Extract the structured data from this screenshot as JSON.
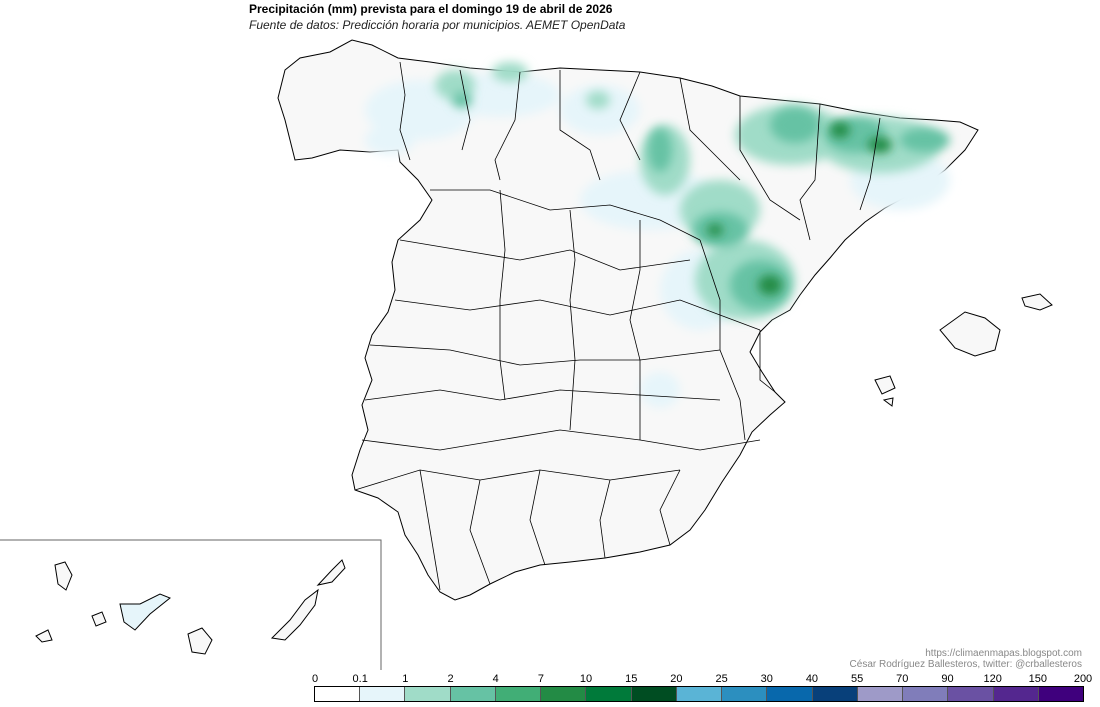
{
  "title": "Precipitación (mm) prevista para el domingo 19 de abril de 2026",
  "subtitle": "Fuente de datos: Predicción horaria por municipios. AEMET OpenData",
  "credits": {
    "url": "https://climaenmapas.blogspot.com",
    "author": "César Rodríguez Ballesteros, twitter: @crballesteros"
  },
  "legend": {
    "labels": [
      "0",
      "0.1",
      "1",
      "2",
      "4",
      "7",
      "10",
      "15",
      "20",
      "25",
      "30",
      "40",
      "55",
      "70",
      "90",
      "120",
      "150",
      "200"
    ],
    "colors": [
      "#ffffff",
      "#e6f5fa",
      "#a0dcc8",
      "#66c2a4",
      "#41ae76",
      "#238b45",
      "#007a3a",
      "#004d22",
      "#5ab4d6",
      "#2c8fbf",
      "#0868ac",
      "#08407a",
      "#9e9ac8",
      "#807dba",
      "#6a51a3",
      "#54278f",
      "#3f007d"
    ]
  },
  "colors": {
    "land": "#f8f8f8",
    "border": "#000000",
    "inset_frame": "#666666"
  }
}
